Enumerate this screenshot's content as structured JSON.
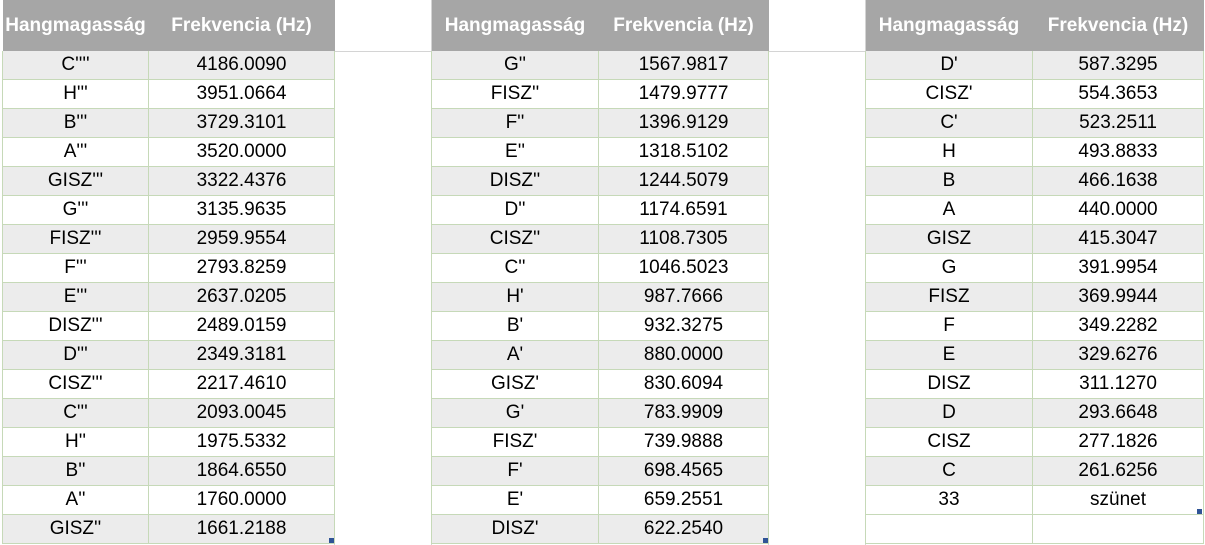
{
  "headers": {
    "pitch": "Hangmagasság",
    "freq": "Frekvencia (Hz)"
  },
  "tables": [
    {
      "rows": [
        [
          "C''''",
          "4186.0090"
        ],
        [
          "H'''",
          "3951.0664"
        ],
        [
          "B'''",
          "3729.3101"
        ],
        [
          "A'''",
          "3520.0000"
        ],
        [
          "GISZ'''",
          "3322.4376"
        ],
        [
          "G'''",
          "3135.9635"
        ],
        [
          "FISZ'''",
          "2959.9554"
        ],
        [
          "F'''",
          "2793.8259"
        ],
        [
          "E'''",
          "2637.0205"
        ],
        [
          "DISZ'''",
          "2489.0159"
        ],
        [
          "D'''",
          "2349.3181"
        ],
        [
          "CISZ'''",
          "2217.4610"
        ],
        [
          "C'''",
          "2093.0045"
        ],
        [
          "H''",
          "1975.5332"
        ],
        [
          "B''",
          "1864.6550"
        ],
        [
          "A''",
          "1760.0000"
        ],
        [
          "GISZ''",
          "1661.2188"
        ]
      ]
    },
    {
      "rows": [
        [
          "G''",
          "1567.9817"
        ],
        [
          "FISZ''",
          "1479.9777"
        ],
        [
          "F''",
          "1396.9129"
        ],
        [
          "E''",
          "1318.5102"
        ],
        [
          "DISZ''",
          "1244.5079"
        ],
        [
          "D''",
          "1174.6591"
        ],
        [
          "CISZ''",
          "1108.7305"
        ],
        [
          "C''",
          "1046.5023"
        ],
        [
          "H'",
          "987.7666"
        ],
        [
          "B'",
          "932.3275"
        ],
        [
          "A'",
          "880.0000"
        ],
        [
          "GISZ'",
          "830.6094"
        ],
        [
          "G'",
          "783.9909"
        ],
        [
          "FISZ'",
          "739.9888"
        ],
        [
          "F'",
          "698.4565"
        ],
        [
          "E'",
          "659.2551"
        ],
        [
          "DISZ'",
          "622.2540"
        ]
      ]
    },
    {
      "rows": [
        [
          "D'",
          "587.3295"
        ],
        [
          "CISZ'",
          "554.3653"
        ],
        [
          "C'",
          "523.2511"
        ],
        [
          "H",
          "493.8833"
        ],
        [
          "B",
          "466.1638"
        ],
        [
          "A",
          "440.0000"
        ],
        [
          "GISZ",
          "415.3047"
        ],
        [
          "G",
          "391.9954"
        ],
        [
          "FISZ",
          "369.9944"
        ],
        [
          "F",
          "349.2282"
        ],
        [
          "E",
          "329.6276"
        ],
        [
          "DISZ",
          "311.1270"
        ],
        [
          "D",
          "293.6648"
        ],
        [
          "CISZ",
          "277.1826"
        ],
        [
          "C",
          "261.6256"
        ],
        [
          "33",
          "szünet"
        ]
      ]
    }
  ]
}
